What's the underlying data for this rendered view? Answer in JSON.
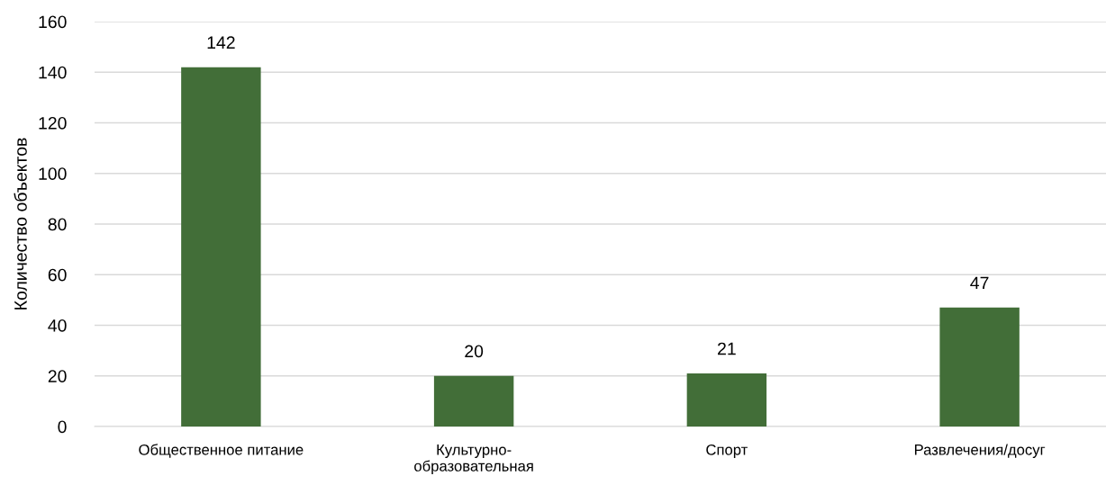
{
  "chart_data": {
    "type": "bar",
    "ylabel": "Количество объектов",
    "categories": [
      "Общественное питание",
      "Культурно-\nобразовательная",
      "Спорт",
      "Развлечения/досуг"
    ],
    "values": [
      142,
      20,
      21,
      47
    ],
    "color": "#426e38",
    "ylim": [
      0,
      160
    ],
    "yticks": [
      0,
      20,
      40,
      60,
      80,
      100,
      120,
      140,
      160
    ],
    "grid": "y",
    "data_labels": true
  }
}
